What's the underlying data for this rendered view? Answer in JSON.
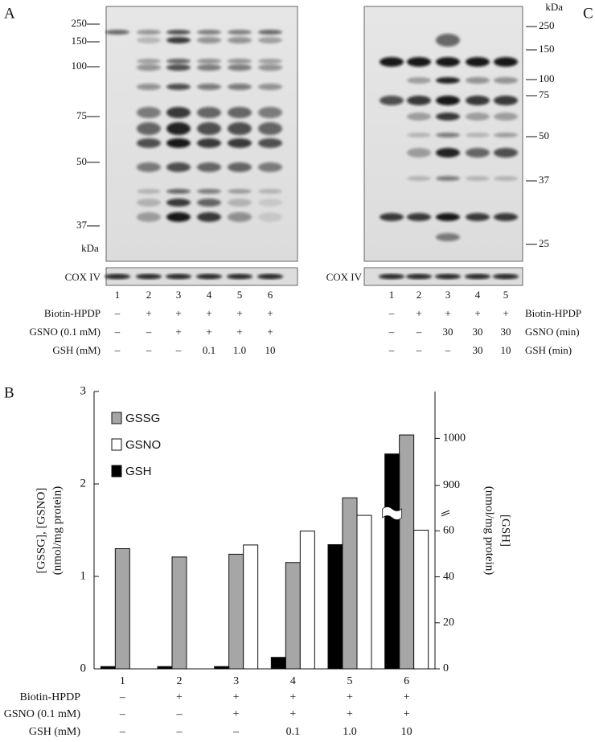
{
  "panel_a": {
    "letter": "A",
    "mw_markers": [
      "250",
      "150",
      "100",
      "75",
      "50",
      "37"
    ],
    "unit": "kDa",
    "loading_control": "COX IV",
    "lanes": [
      "1",
      "2",
      "3",
      "4",
      "5",
      "6"
    ],
    "conditions": [
      {
        "name": "Biotin-HPDP",
        "values": [
          "–",
          "+",
          "+",
          "+",
          "+",
          "+"
        ]
      },
      {
        "name": "GSNO (0.1 mM)",
        "values": [
          "–",
          "–",
          "+",
          "+",
          "+",
          "+"
        ]
      },
      {
        "name": "GSH (mM)",
        "values": [
          "–",
          "–",
          "–",
          "0.1",
          "1.0",
          "10"
        ]
      }
    ]
  },
  "panel_c": {
    "letter": "C",
    "mw_markers": [
      "250",
      "150",
      "100",
      "75",
      "50",
      "37",
      "25"
    ],
    "unit": "kDa",
    "loading_control": "COX IV",
    "lanes": [
      "1",
      "2",
      "3",
      "4",
      "5"
    ],
    "conditions": [
      {
        "name": "Biotin-HPDP",
        "values": [
          "–",
          "+",
          "+",
          "+",
          "+"
        ]
      },
      {
        "name": "GSNO (min)",
        "values": [
          "–",
          "–",
          "30",
          "30",
          "30"
        ]
      },
      {
        "name": "GSH (min)",
        "values": [
          "–",
          "–",
          "–",
          "30",
          "10"
        ]
      }
    ]
  },
  "chart_data": {
    "type": "bar",
    "letter": "B",
    "y_label": [
      "[GSSG], [GSNO]",
      "(nmol/mg protein)"
    ],
    "y2_label": [
      "[GSH]",
      "(nmol/mg protein)"
    ],
    "categories": [
      "1",
      "2",
      "3",
      "4",
      "5",
      "6"
    ],
    "series": [
      {
        "name": "GSSG",
        "color": "#a6a6a6",
        "values": [
          1.3,
          1.21,
          1.24,
          1.15,
          1.85,
          2.53
        ]
      },
      {
        "name": "GSNO",
        "color": "#ffffff",
        "values": [
          null,
          null,
          1.34,
          1.49,
          1.66,
          1.5
        ]
      },
      {
        "name": "GSH",
        "color": "#000000",
        "axis": "y2",
        "values": [
          1,
          1,
          1,
          5,
          54,
          967
        ]
      }
    ],
    "ylim": [
      0,
      3
    ],
    "yticks": [
      0,
      1,
      2,
      3
    ],
    "y2lim": [
      0,
      1100
    ],
    "y2_break": [
      65,
      850
    ],
    "y2ticks": [
      0,
      20,
      40,
      60,
      900,
      1000
    ],
    "conditions": [
      {
        "name": "Biotin-HPDP",
        "values": [
          "–",
          "+",
          "+",
          "+",
          "+",
          "+"
        ]
      },
      {
        "name": "GSNO (0.1 mM)",
        "values": [
          "–",
          "–",
          "+",
          "+",
          "+",
          "+"
        ]
      },
      {
        "name": "GSH (mM)",
        "values": [
          "–",
          "–",
          "–",
          "0.1",
          "1.0",
          "10"
        ]
      }
    ]
  }
}
